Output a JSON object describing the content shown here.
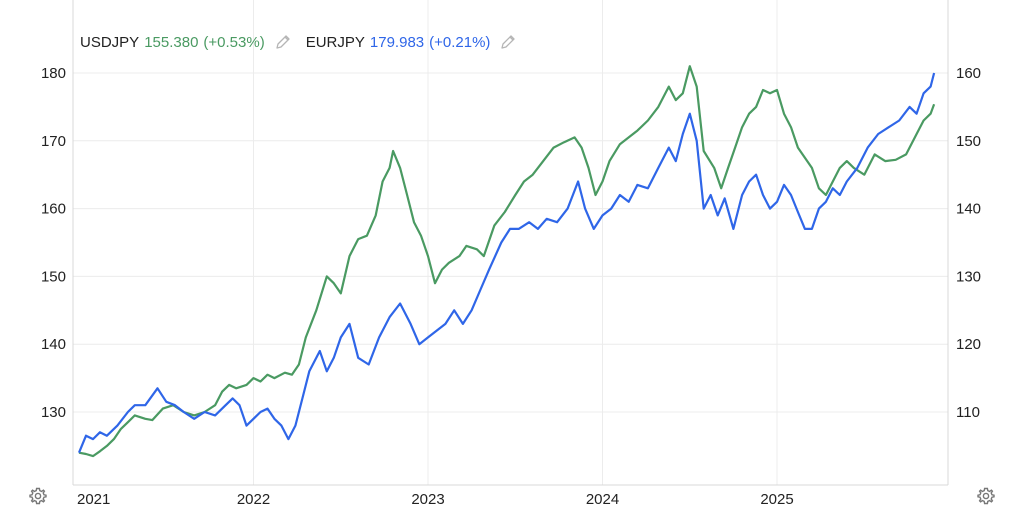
{
  "legend": {
    "usdjpy": {
      "symbol": "USDJPY",
      "value": "155.380",
      "change": "(+0.53%)",
      "color": "#4a9a62"
    },
    "eurjpy": {
      "symbol": "EURJPY",
      "value": "179.983",
      "change": "(+0.21%)",
      "color": "#2f66e8"
    }
  },
  "icons": {
    "left": "gear-icon",
    "right": "gear-icon",
    "edit": "pencil-icon"
  },
  "chart_data": {
    "type": "line",
    "left_axis": {
      "ticks": [
        "130",
        "140",
        "150",
        "160",
        "170",
        "180"
      ],
      "ylim": [
        122.5,
        181.5
      ]
    },
    "right_axis": {
      "ticks": [
        "110",
        "120",
        "130",
        "140",
        "150",
        "160"
      ],
      "ylim": [
        102.5,
        161.5
      ]
    },
    "x_ticks": [
      {
        "label": "2021",
        "year": 2021
      },
      {
        "label": "2022",
        "year": 2022
      },
      {
        "label": "2023",
        "year": 2023
      },
      {
        "label": "2024",
        "year": 2024
      },
      {
        "label": "2025",
        "year": 2025
      }
    ],
    "xlim": [
      2021.0,
      2025.9
    ],
    "grid": true,
    "series": [
      {
        "name": "EURJPY",
        "axis": "left",
        "color": "#2f66e8",
        "points": [
          [
            2021.0,
            124
          ],
          [
            2021.04,
            126.5
          ],
          [
            2021.08,
            126
          ],
          [
            2021.12,
            127
          ],
          [
            2021.16,
            126.5
          ],
          [
            2021.22,
            128
          ],
          [
            2021.28,
            130
          ],
          [
            2021.32,
            131
          ],
          [
            2021.38,
            131
          ],
          [
            2021.45,
            133.5
          ],
          [
            2021.5,
            131.5
          ],
          [
            2021.55,
            131
          ],
          [
            2021.6,
            130
          ],
          [
            2021.66,
            129
          ],
          [
            2021.72,
            130
          ],
          [
            2021.78,
            129.5
          ],
          [
            2021.84,
            131
          ],
          [
            2021.88,
            132
          ],
          [
            2021.92,
            131
          ],
          [
            2021.96,
            128
          ],
          [
            2022.0,
            129
          ],
          [
            2022.04,
            130
          ],
          [
            2022.08,
            130.5
          ],
          [
            2022.12,
            129
          ],
          [
            2022.16,
            128
          ],
          [
            2022.2,
            126
          ],
          [
            2022.24,
            128
          ],
          [
            2022.28,
            132
          ],
          [
            2022.32,
            136
          ],
          [
            2022.38,
            139
          ],
          [
            2022.42,
            136
          ],
          [
            2022.46,
            138
          ],
          [
            2022.5,
            141
          ],
          [
            2022.55,
            143
          ],
          [
            2022.6,
            138
          ],
          [
            2022.66,
            137
          ],
          [
            2022.72,
            141
          ],
          [
            2022.78,
            144
          ],
          [
            2022.84,
            146
          ],
          [
            2022.9,
            143
          ],
          [
            2022.95,
            140
          ],
          [
            2023.0,
            141
          ],
          [
            2023.05,
            142
          ],
          [
            2023.1,
            143
          ],
          [
            2023.15,
            145
          ],
          [
            2023.2,
            143
          ],
          [
            2023.25,
            145
          ],
          [
            2023.3,
            148
          ],
          [
            2023.35,
            151
          ],
          [
            2023.42,
            155
          ],
          [
            2023.47,
            157
          ],
          [
            2023.52,
            157
          ],
          [
            2023.58,
            158
          ],
          [
            2023.63,
            157
          ],
          [
            2023.68,
            158.5
          ],
          [
            2023.74,
            158
          ],
          [
            2023.8,
            160
          ],
          [
            2023.86,
            164
          ],
          [
            2023.9,
            160
          ],
          [
            2023.95,
            157
          ],
          [
            2024.0,
            159
          ],
          [
            2024.05,
            160
          ],
          [
            2024.1,
            162
          ],
          [
            2024.15,
            161
          ],
          [
            2024.2,
            163.5
          ],
          [
            2024.26,
            163
          ],
          [
            2024.32,
            166
          ],
          [
            2024.38,
            169
          ],
          [
            2024.42,
            167
          ],
          [
            2024.46,
            171
          ],
          [
            2024.5,
            174
          ],
          [
            2024.54,
            170
          ],
          [
            2024.58,
            160
          ],
          [
            2024.62,
            162
          ],
          [
            2024.66,
            159
          ],
          [
            2024.7,
            161.5
          ],
          [
            2024.75,
            157
          ],
          [
            2024.8,
            162
          ],
          [
            2024.84,
            164
          ],
          [
            2024.88,
            165
          ],
          [
            2024.92,
            162
          ],
          [
            2024.96,
            160
          ],
          [
            2025.0,
            161
          ],
          [
            2025.04,
            163.5
          ],
          [
            2025.08,
            162
          ],
          [
            2025.12,
            159.5
          ],
          [
            2025.16,
            157
          ],
          [
            2025.2,
            157
          ],
          [
            2025.24,
            160
          ],
          [
            2025.28,
            161
          ],
          [
            2025.32,
            163
          ],
          [
            2025.36,
            162
          ],
          [
            2025.4,
            164
          ],
          [
            2025.46,
            166
          ],
          [
            2025.52,
            169
          ],
          [
            2025.58,
            171
          ],
          [
            2025.64,
            172
          ],
          [
            2025.7,
            173
          ],
          [
            2025.76,
            175
          ],
          [
            2025.8,
            174
          ],
          [
            2025.84,
            177
          ],
          [
            2025.88,
            178
          ],
          [
            2025.9,
            180
          ]
        ]
      },
      {
        "name": "USDJPY",
        "axis": "right",
        "color": "#4a9a62",
        "points": [
          [
            2021.0,
            104
          ],
          [
            2021.04,
            103.8
          ],
          [
            2021.08,
            103.5
          ],
          [
            2021.12,
            104.2
          ],
          [
            2021.16,
            105
          ],
          [
            2021.2,
            106
          ],
          [
            2021.24,
            107.5
          ],
          [
            2021.28,
            108.5
          ],
          [
            2021.32,
            109.5
          ],
          [
            2021.38,
            109
          ],
          [
            2021.42,
            108.8
          ],
          [
            2021.48,
            110.5
          ],
          [
            2021.54,
            111
          ],
          [
            2021.6,
            110
          ],
          [
            2021.66,
            109.5
          ],
          [
            2021.72,
            110
          ],
          [
            2021.78,
            111
          ],
          [
            2021.82,
            113
          ],
          [
            2021.86,
            114
          ],
          [
            2021.9,
            113.5
          ],
          [
            2021.96,
            114
          ],
          [
            2022.0,
            115
          ],
          [
            2022.04,
            114.5
          ],
          [
            2022.08,
            115.5
          ],
          [
            2022.12,
            115
          ],
          [
            2022.18,
            115.8
          ],
          [
            2022.22,
            115.5
          ],
          [
            2022.26,
            117
          ],
          [
            2022.3,
            121
          ],
          [
            2022.36,
            125
          ],
          [
            2022.42,
            130
          ],
          [
            2022.46,
            129
          ],
          [
            2022.5,
            127.5
          ],
          [
            2022.55,
            133
          ],
          [
            2022.6,
            135.5
          ],
          [
            2022.65,
            136
          ],
          [
            2022.7,
            139
          ],
          [
            2022.74,
            144
          ],
          [
            2022.78,
            146
          ],
          [
            2022.8,
            148.5
          ],
          [
            2022.84,
            146
          ],
          [
            2022.88,
            142
          ],
          [
            2022.92,
            138
          ],
          [
            2022.96,
            136
          ],
          [
            2023.0,
            133
          ],
          [
            2023.04,
            129
          ],
          [
            2023.08,
            131
          ],
          [
            2023.12,
            132
          ],
          [
            2023.18,
            133
          ],
          [
            2023.22,
            134.5
          ],
          [
            2023.28,
            134
          ],
          [
            2023.32,
            133
          ],
          [
            2023.38,
            137.5
          ],
          [
            2023.44,
            139.5
          ],
          [
            2023.5,
            142
          ],
          [
            2023.55,
            144
          ],
          [
            2023.6,
            145
          ],
          [
            2023.66,
            147
          ],
          [
            2023.72,
            149
          ],
          [
            2023.78,
            149.8
          ],
          [
            2023.84,
            150.5
          ],
          [
            2023.88,
            149
          ],
          [
            2023.92,
            146
          ],
          [
            2023.96,
            142
          ],
          [
            2024.0,
            144
          ],
          [
            2024.04,
            147
          ],
          [
            2024.1,
            149.5
          ],
          [
            2024.15,
            150.5
          ],
          [
            2024.2,
            151.5
          ],
          [
            2024.26,
            153
          ],
          [
            2024.32,
            155
          ],
          [
            2024.38,
            158
          ],
          [
            2024.42,
            156
          ],
          [
            2024.46,
            157
          ],
          [
            2024.5,
            161
          ],
          [
            2024.54,
            158
          ],
          [
            2024.58,
            148.5
          ],
          [
            2024.64,
            146
          ],
          [
            2024.68,
            143
          ],
          [
            2024.72,
            146
          ],
          [
            2024.76,
            149
          ],
          [
            2024.8,
            152
          ],
          [
            2024.84,
            154
          ],
          [
            2024.88,
            155
          ],
          [
            2024.92,
            157.5
          ],
          [
            2024.96,
            157
          ],
          [
            2025.0,
            157.5
          ],
          [
            2025.04,
            154
          ],
          [
            2025.08,
            152
          ],
          [
            2025.12,
            149
          ],
          [
            2025.16,
            147.5
          ],
          [
            2025.2,
            146
          ],
          [
            2025.24,
            143
          ],
          [
            2025.28,
            142
          ],
          [
            2025.32,
            144
          ],
          [
            2025.36,
            146
          ],
          [
            2025.4,
            147
          ],
          [
            2025.44,
            146
          ],
          [
            2025.5,
            145
          ],
          [
            2025.56,
            148
          ],
          [
            2025.62,
            147
          ],
          [
            2025.68,
            147.2
          ],
          [
            2025.74,
            148
          ],
          [
            2025.8,
            151
          ],
          [
            2025.84,
            153
          ],
          [
            2025.88,
            154
          ],
          [
            2025.9,
            155.4
          ]
        ]
      }
    ]
  }
}
